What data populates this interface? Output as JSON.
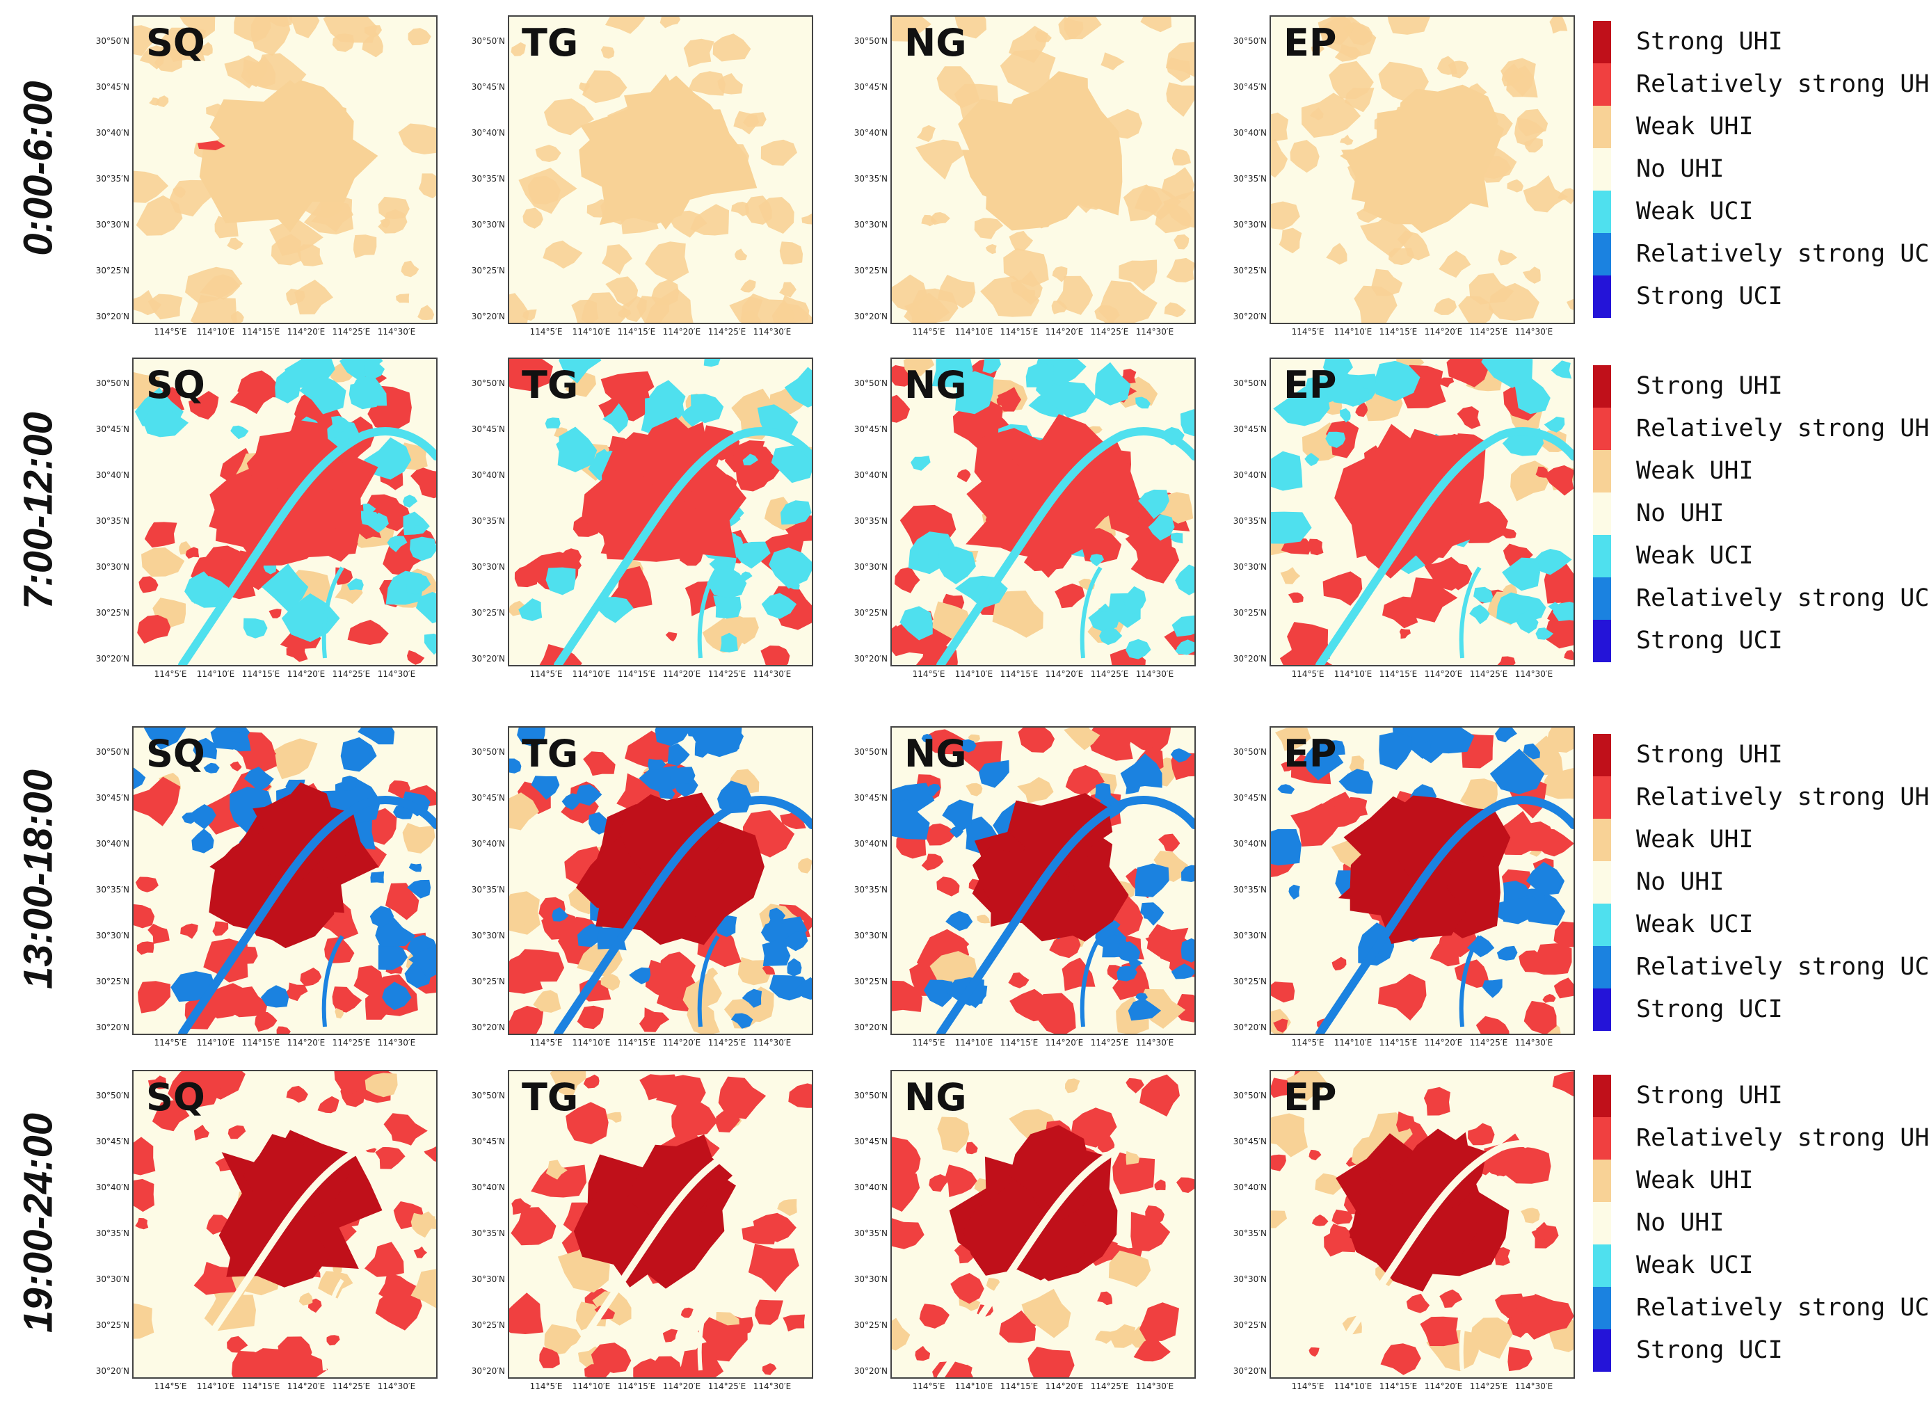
{
  "periods": [
    "0:00-6:00",
    "7:00-12:00",
    "13:00-18:00",
    "19:00-24:00"
  ],
  "scenarios": [
    "SQ",
    "TG",
    "NG",
    "EP"
  ],
  "y_ticks": [
    "30°50′N",
    "30°45′N",
    "30°40′N",
    "30°35′N",
    "30°30′N",
    "30°25′N",
    "30°20′N"
  ],
  "x_ticks": [
    "114°5′E",
    "114°10′E",
    "114°15′E",
    "114°20′E",
    "114°25′E",
    "114°30′E"
  ],
  "legend": {
    "classes": [
      {
        "label": "Strong UHI",
        "color": "#c0101a"
      },
      {
        "label": "Relatively strong UHI",
        "color": "#f04040"
      },
      {
        "label": "Weak UHI",
        "color": "#f8d296"
      },
      {
        "label": "No UHI",
        "color": "#fdfbe6"
      },
      {
        "label": "Weak UCI",
        "color": "#4fe0ee"
      },
      {
        "label": "Relatively strong UCI",
        "color": "#1b82e0"
      },
      {
        "label": "Strong UCI",
        "color": "#2414d8"
      }
    ]
  },
  "period_class_mix": {
    "0:00-6:00": {
      "city": "Weak UHI",
      "outskirts": "No UHI",
      "river": "Weak UHI",
      "cool": "No UHI"
    },
    "7:00-12:00": {
      "city": "Relatively strong UHI",
      "outskirts": "Relatively strong UHI",
      "river": "Weak UCI",
      "cool": "Weak UCI"
    },
    "13:00-18:00": {
      "city": "Strong UHI",
      "outskirts": "Relatively strong UHI",
      "river": "Relatively strong UCI",
      "cool": "Relatively strong UCI"
    },
    "19:00-24:00": {
      "city": "Strong UHI",
      "outskirts": "Relatively strong UHI",
      "river": "No UHI",
      "cool": "No UHI"
    }
  }
}
